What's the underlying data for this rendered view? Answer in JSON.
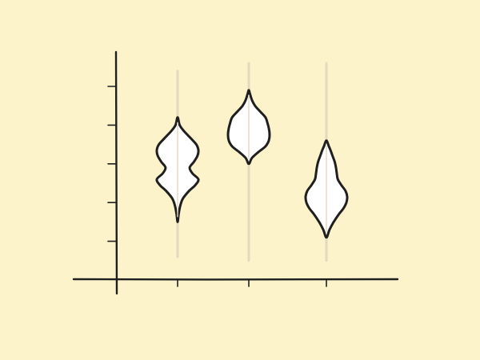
{
  "colors": {
    "background": "#fdf3cb",
    "ink": "#1f1f1f",
    "violin_fill": "#ffffff",
    "range_line": "#e3d9bf"
  },
  "chart_data": {
    "type": "violin",
    "title": "",
    "xlabel": "",
    "ylabel": "",
    "categories": [
      "",
      "",
      ""
    ],
    "ylim": [
      0,
      5
    ],
    "yticks": [
      1,
      2,
      3,
      4,
      5
    ],
    "grid": false,
    "legend": "none",
    "series": [
      {
        "range": [
          0.6,
          5.4
        ],
        "extent": [
          1.5,
          4.2
        ],
        "profile": [
          [
            1.5,
            0.0
          ],
          [
            1.7,
            0.05
          ],
          [
            1.9,
            0.12
          ],
          [
            2.1,
            0.25
          ],
          [
            2.3,
            0.55
          ],
          [
            2.45,
            0.85
          ],
          [
            2.6,
            1.0
          ],
          [
            2.75,
            0.72
          ],
          [
            2.9,
            0.58
          ],
          [
            3.05,
            0.78
          ],
          [
            3.2,
            0.95
          ],
          [
            3.35,
            1.0
          ],
          [
            3.5,
            0.9
          ],
          [
            3.65,
            0.65
          ],
          [
            3.85,
            0.3
          ],
          [
            4.0,
            0.1
          ],
          [
            4.2,
            0.0
          ]
        ]
      },
      {
        "range": [
          0.5,
          5.6
        ],
        "extent": [
          3.0,
          4.9
        ],
        "profile": [
          [
            3.0,
            0.0
          ],
          [
            3.15,
            0.15
          ],
          [
            3.3,
            0.45
          ],
          [
            3.45,
            0.8
          ],
          [
            3.6,
            0.96
          ],
          [
            3.75,
            1.0
          ],
          [
            3.9,
            0.97
          ],
          [
            4.05,
            0.9
          ],
          [
            4.2,
            0.8
          ],
          [
            4.35,
            0.55
          ],
          [
            4.5,
            0.3
          ],
          [
            4.65,
            0.15
          ],
          [
            4.8,
            0.06
          ],
          [
            4.9,
            0.0
          ]
        ]
      },
      {
        "range": [
          0.5,
          5.6
        ],
        "extent": [
          1.1,
          3.6
        ],
        "profile": [
          [
            1.1,
            0.0
          ],
          [
            1.3,
            0.15
          ],
          [
            1.5,
            0.35
          ],
          [
            1.7,
            0.6
          ],
          [
            1.85,
            0.82
          ],
          [
            2.0,
            0.96
          ],
          [
            2.15,
            1.0
          ],
          [
            2.3,
            0.92
          ],
          [
            2.45,
            0.72
          ],
          [
            2.6,
            0.55
          ],
          [
            2.75,
            0.5
          ],
          [
            2.9,
            0.46
          ],
          [
            3.05,
            0.4
          ],
          [
            3.2,
            0.3
          ],
          [
            3.35,
            0.2
          ],
          [
            3.45,
            0.12
          ],
          [
            3.6,
            0.0
          ]
        ]
      }
    ]
  }
}
